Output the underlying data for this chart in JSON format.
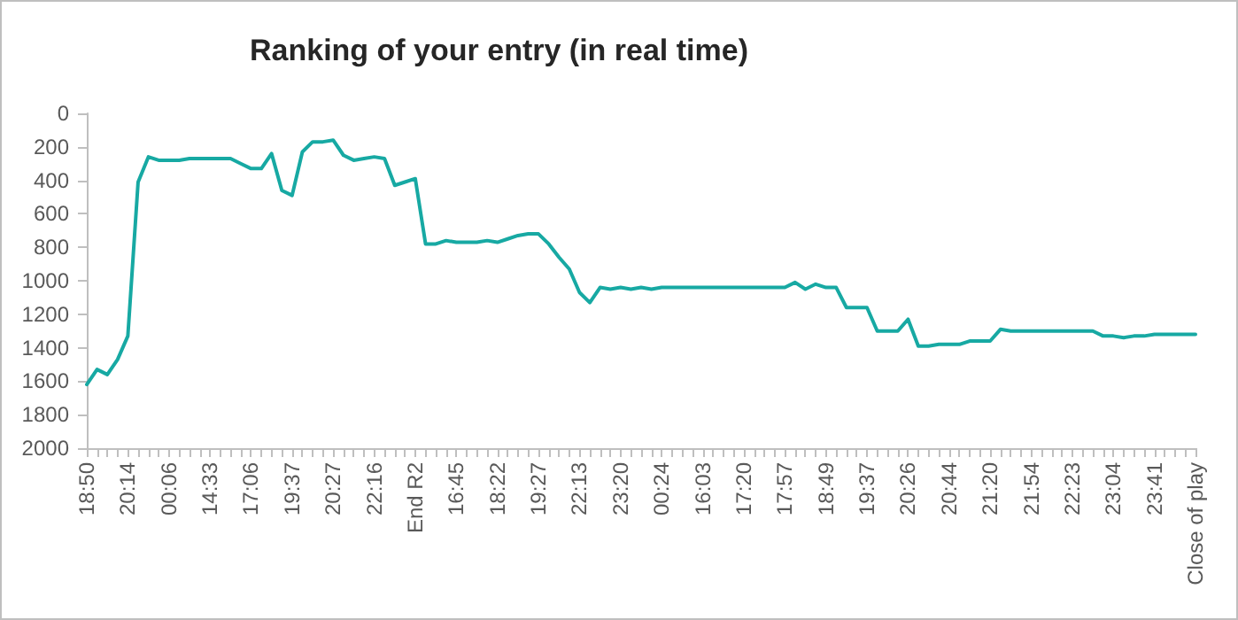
{
  "chart_data": {
    "type": "line",
    "title": "Ranking of your entry (in real time)",
    "categories": [
      "18:50",
      null,
      null,
      null,
      "20:14",
      null,
      null,
      null,
      "00:06",
      null,
      null,
      null,
      "14:33",
      null,
      null,
      null,
      "17:06",
      null,
      null,
      null,
      "19:37",
      null,
      null,
      null,
      "20:27",
      null,
      null,
      null,
      "22:16",
      null,
      null,
      null,
      "End R2",
      null,
      null,
      null,
      "16:45",
      null,
      null,
      null,
      "18:22",
      null,
      null,
      null,
      "19:27",
      null,
      null,
      null,
      "22:13",
      null,
      null,
      null,
      "23:20",
      null,
      null,
      null,
      "00:24",
      null,
      null,
      null,
      "16:03",
      null,
      null,
      null,
      "17:20",
      null,
      null,
      null,
      "17:57",
      null,
      null,
      null,
      "18:49",
      null,
      null,
      null,
      "19:37",
      null,
      null,
      null,
      "20:26",
      null,
      null,
      null,
      "20:44",
      null,
      null,
      null,
      "21:20",
      null,
      null,
      null,
      "21:54",
      null,
      null,
      null,
      "22:23",
      null,
      null,
      null,
      "23:04",
      null,
      null,
      null,
      "23:41",
      null,
      null,
      null,
      "Close of play"
    ],
    "values": [
      1620,
      1530,
      1560,
      1470,
      1330,
      410,
      260,
      280,
      280,
      280,
      270,
      270,
      270,
      270,
      270,
      300,
      330,
      330,
      240,
      460,
      490,
      230,
      170,
      170,
      160,
      250,
      280,
      270,
      260,
      270,
      430,
      410,
      390,
      780,
      780,
      760,
      770,
      770,
      770,
      760,
      770,
      750,
      730,
      720,
      720,
      780,
      860,
      930,
      1070,
      1130,
      1040,
      1050,
      1040,
      1050,
      1040,
      1050,
      1040,
      1040,
      1040,
      1040,
      1040,
      1040,
      1040,
      1040,
      1040,
      1040,
      1040,
      1040,
      1040,
      1010,
      1050,
      1020,
      1040,
      1040,
      1160,
      1160,
      1160,
      1300,
      1300,
      1300,
      1230,
      1390,
      1390,
      1380,
      1380,
      1380,
      1360,
      1360,
      1360,
      1290,
      1300,
      1300,
      1300,
      1300,
      1300,
      1300,
      1300,
      1300,
      1300,
      1330,
      1330,
      1340,
      1330,
      1330,
      1320,
      1320,
      1320,
      1320,
      1320
    ],
    "color": "#17a9a3",
    "ylim": [
      2000,
      0
    ],
    "yticks": [
      0,
      200,
      400,
      600,
      800,
      1000,
      1200,
      1400,
      1600,
      1800,
      2000
    ],
    "marker": "none"
  }
}
